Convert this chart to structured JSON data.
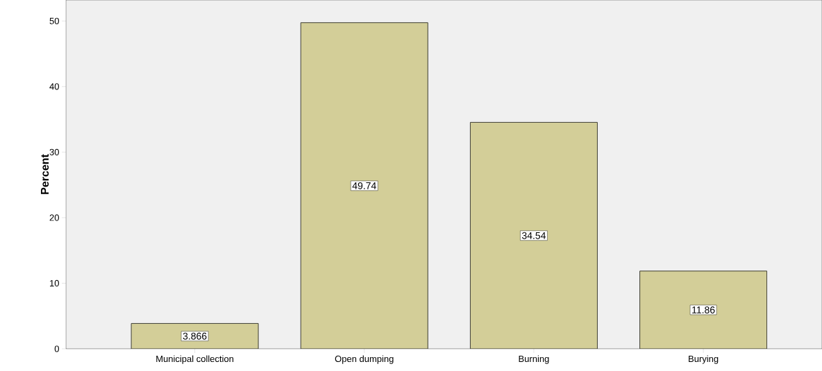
{
  "chart_data": {
    "type": "bar",
    "ylabel": "Percent",
    "categories": [
      "Municipal collection",
      "Open dumping",
      "Burning",
      "Burying"
    ],
    "values": [
      3.866,
      49.74,
      34.54,
      11.86
    ],
    "color": "#d3ce98",
    "ylim": [
      0,
      53.2
    ],
    "yticks": [
      0,
      10,
      20,
      30,
      40,
      50
    ],
    "grid": false,
    "data_labels": true
  }
}
